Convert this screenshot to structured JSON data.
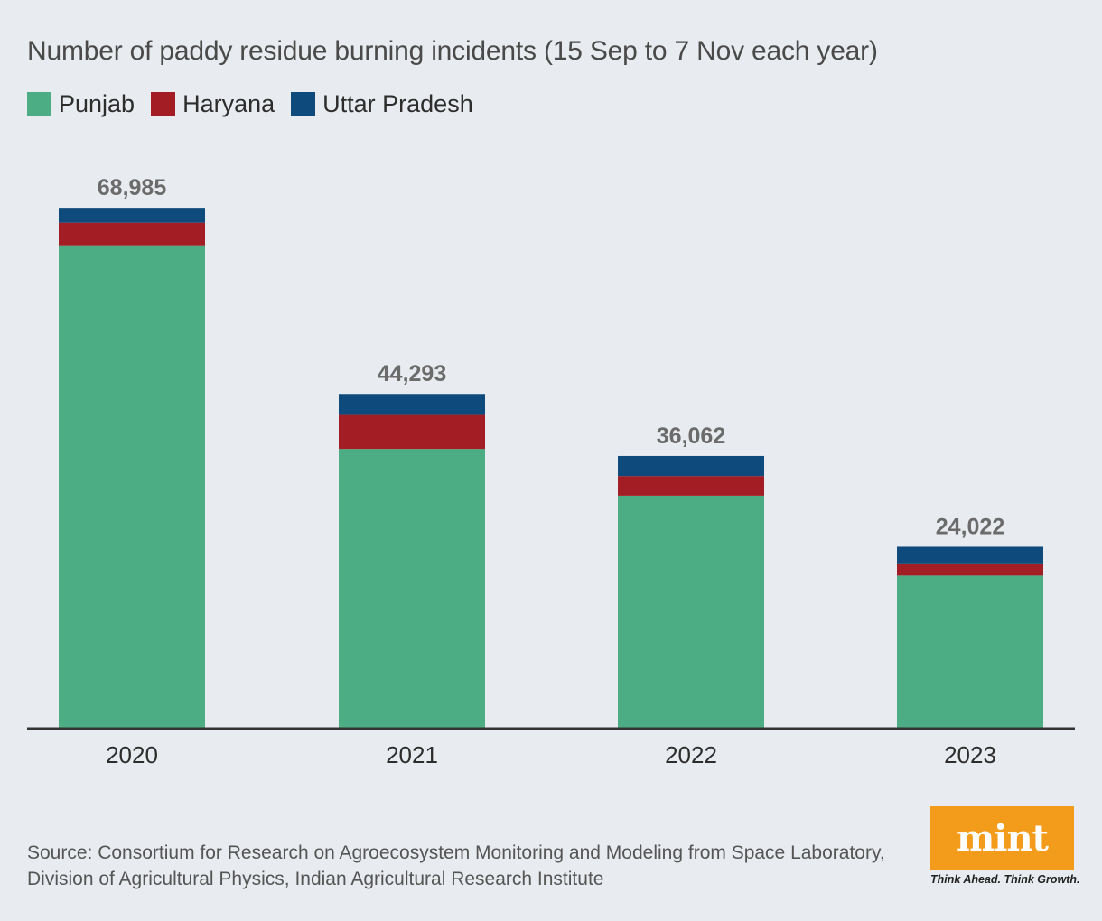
{
  "title": "Number of paddy residue burning incidents (15 Sep to 7 Nov each year)",
  "legend": [
    {
      "label": "Punjab",
      "color": "#4cac83"
    },
    {
      "label": "Haryana",
      "color": "#a31d24"
    },
    {
      "label": "Uttar Pradesh",
      "color": "#0e4a7b"
    }
  ],
  "chart_data": {
    "type": "bar",
    "stacked": true,
    "title": "Number of paddy residue burning incidents (15 Sep to 7 Nov each year)",
    "categories": [
      "2020",
      "2021",
      "2022",
      "2023"
    ],
    "series": [
      {
        "name": "Punjab",
        "color": "#4cac83",
        "values": [
          64000,
          37000,
          30800,
          20200
        ]
      },
      {
        "name": "Haryana",
        "color": "#a31d24",
        "values": [
          3000,
          4500,
          2600,
          1500
        ]
      },
      {
        "name": "Uttar Pradesh",
        "color": "#0e4a7b",
        "values": [
          1985,
          2793,
          2662,
          2322
        ]
      }
    ],
    "totals": [
      68985,
      44293,
      36062,
      24022
    ],
    "total_labels": [
      "68,985",
      "44,293",
      "36,062",
      "24,022"
    ],
    "xlabel": "",
    "ylabel": "",
    "ylim": [
      0,
      69000
    ],
    "grid": false
  },
  "source": "Source: Consortium for Research on Agroecosystem Monitoring and Modeling from Space Laboratory, Division of Agricultural Physics, Indian Agricultural Research Institute",
  "logo": {
    "text": "mint",
    "tagline": "Think Ahead. Think Growth."
  }
}
